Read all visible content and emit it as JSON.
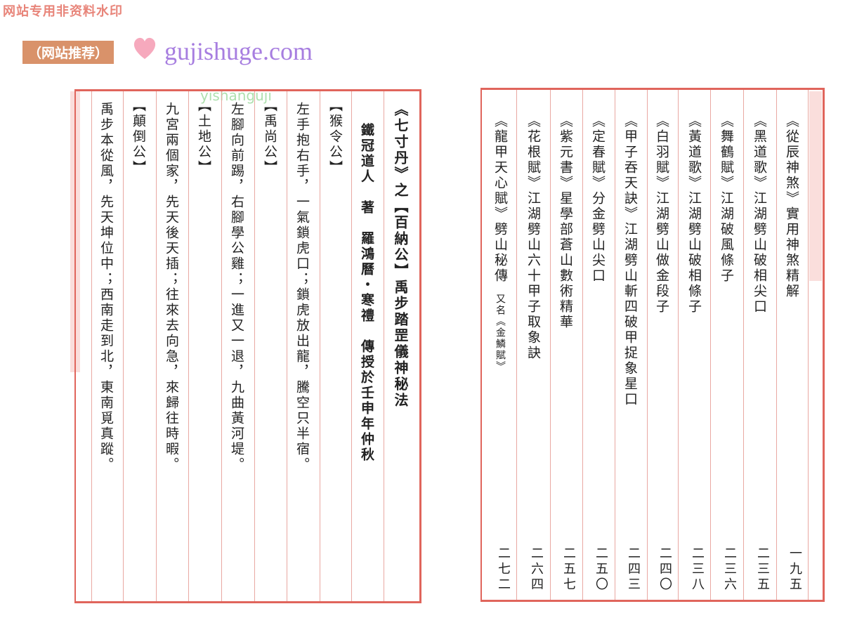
{
  "watermarks": {
    "top_notice": "网站专用非资料水印",
    "badge": "（网站推荐）",
    "site": "gujishuge.com",
    "overlay": "yishanguji"
  },
  "left_page": {
    "title": "《七寸丹》之【百納公】禹步踏罡儀神秘法",
    "author_line": "鐵冠道人　著　羅鴻曆・寒禮　傳授於壬申年仲秋",
    "columns": [
      "【猴令公】",
      "左手抱右手，一氣鎖虎口；鎖虎放出龍，騰空只半宿。",
      "【禹尚公】",
      "左腳向前踢，右腳學公雞；一進又一退，九曲黃河堤。",
      "【土地公】",
      "九宮兩個家，先天後天插；往來去向急，來歸往時暇。",
      "【顛倒公】",
      "禹步本從風，先天坤位中；西南走到北，東南覓真蹤。"
    ]
  },
  "right_page": {
    "entries": [
      {
        "title": "《從辰神煞》實用神煞精解",
        "note": "",
        "page": "一九五"
      },
      {
        "title": "《黑道歌》江湖劈山破相尖口",
        "note": "",
        "page": "二三五"
      },
      {
        "title": "《舞鶴賦》江湖破風條子",
        "note": "",
        "page": "二三六"
      },
      {
        "title": "《黃道歌》江湖劈山破相條子",
        "note": "",
        "page": "二三八"
      },
      {
        "title": "《白羽賦》江湖劈山做金段子",
        "note": "",
        "page": "二四〇"
      },
      {
        "title": "《甲子吞天訣》江湖劈山斬四破甲捉象星口",
        "note": "",
        "page": "二四三"
      },
      {
        "title": "《定春賦》分金劈山尖口",
        "note": "",
        "page": "二五〇"
      },
      {
        "title": "《紫元書》星學部蒼山數術精華",
        "note": "",
        "page": "二五七"
      },
      {
        "title": "《花根賦》江湖劈山六十甲子取象訣",
        "note": "",
        "page": "二六四"
      },
      {
        "title": "《龍甲天心賦》劈山秘傳",
        "note": "又名《金鱗賦》",
        "page": "二七二"
      }
    ]
  },
  "colors": {
    "frame": "#e0655c",
    "rule": "#e9a8a2",
    "text": "#222222"
  }
}
